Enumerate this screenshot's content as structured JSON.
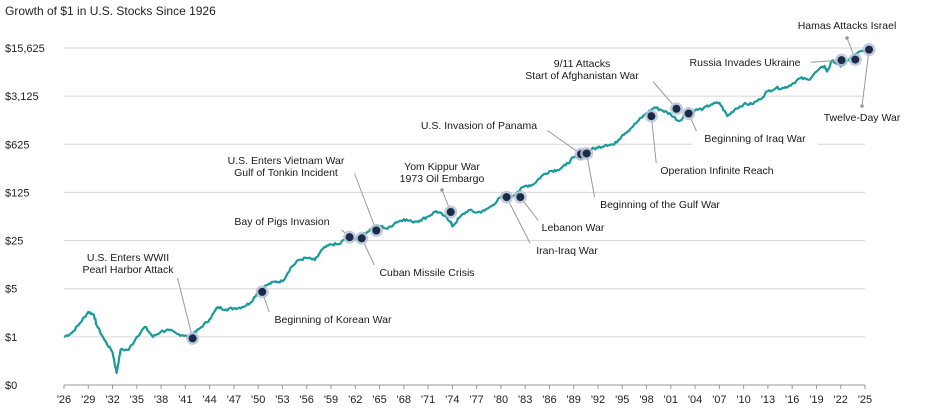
{
  "chart_data": {
    "type": "line",
    "title": "Growth of $1 in U.S. Stocks Since 1926",
    "xlabel": "",
    "ylabel": "",
    "y_scale": "log",
    "xlim": [
      1926,
      2025
    ],
    "ylim": [
      0.2,
      15625
    ],
    "x_ticks": [
      "'26",
      "'29",
      "'32",
      "'35",
      "'38",
      "'41",
      "'44",
      "'47",
      "'50",
      "'53",
      "'56",
      "'59",
      "'62",
      "'65",
      "'68",
      "'71",
      "'74",
      "'77",
      "'80",
      "'83",
      "'86",
      "'89",
      "'92",
      "'95",
      "'98",
      "'01",
      "'04",
      "'07",
      "'10",
      "'13",
      "'16",
      "'19",
      "'22",
      "'25"
    ],
    "x_tick_years": [
      1926,
      1929,
      1932,
      1935,
      1938,
      1941,
      1944,
      1947,
      1950,
      1953,
      1956,
      1959,
      1962,
      1965,
      1968,
      1971,
      1974,
      1977,
      1980,
      1983,
      1986,
      1989,
      1992,
      1995,
      1998,
      2001,
      2004,
      2007,
      2010,
      2013,
      2016,
      2019,
      2022,
      2025
    ],
    "y_ticks": [
      {
        "label": "$0",
        "value": 0.2
      },
      {
        "label": "$1",
        "value": 1
      },
      {
        "label": "$5",
        "value": 5
      },
      {
        "label": "$25",
        "value": 25
      },
      {
        "label": "$125",
        "value": 125
      },
      {
        "label": "$625",
        "value": 625
      },
      {
        "label": "$3,125",
        "value": 3125
      },
      {
        "label": "$15,625",
        "value": 15625
      }
    ],
    "grid": true,
    "series": [
      {
        "name": "Growth of $1",
        "color": "#1a9a9a",
        "x": [
          1926,
          1927,
          1928,
          1929,
          1929.7,
          1930,
          1931,
          1932,
          1932.5,
          1933,
          1934,
          1935,
          1936,
          1937,
          1938,
          1939,
          1940,
          1941,
          1941.9,
          1942,
          1943,
          1944,
          1945,
          1946,
          1947,
          1948,
          1949,
          1950,
          1951,
          1952,
          1953,
          1954,
          1955,
          1956,
          1957,
          1958,
          1959,
          1960,
          1961,
          1962,
          1962.8,
          1963,
          1964,
          1965,
          1966,
          1967,
          1968,
          1969,
          1970,
          1971,
          1972,
          1973,
          1973.8,
          1974,
          1975,
          1976,
          1977,
          1978,
          1979,
          1980,
          1981,
          1982,
          1983,
          1984,
          1985,
          1986,
          1987,
          1988,
          1989,
          1990,
          1991,
          1992,
          1993,
          1994,
          1995,
          1996,
          1997,
          1998,
          1999,
          2000,
          2001,
          2002,
          2003,
          2004,
          2005,
          2006,
          2007,
          2008,
          2009,
          2010,
          2011,
          2012,
          2013,
          2014,
          2015,
          2016,
          2017,
          2018,
          2019,
          2020,
          2020.3,
          2021,
          2022,
          2023,
          2024,
          2025
        ],
        "values": [
          1,
          1.15,
          1.6,
          2.3,
          2.1,
          1.5,
          0.9,
          0.6,
          0.3,
          0.65,
          0.65,
          1,
          1.4,
          1.0,
          1.2,
          1.25,
          1.1,
          1.05,
          0.95,
          1.1,
          1.4,
          1.8,
          2.7,
          2.5,
          2.6,
          2.7,
          3.1,
          4.5,
          5.6,
          6.3,
          6.4,
          10,
          13,
          14,
          13,
          19,
          22,
          22,
          28,
          26,
          26,
          31,
          37,
          41,
          37,
          46,
          51,
          47,
          49,
          56,
          67,
          57,
          47,
          40,
          56,
          69,
          64,
          68,
          82,
          107,
          102,
          126,
          155,
          163,
          215,
          255,
          265,
          310,
          405,
          390,
          520,
          560,
          615,
          620,
          850,
          1050,
          1380,
          1770,
          2150,
          1930,
          1700,
          1350,
          1760,
          1950,
          2050,
          2380,
          2500,
          1600,
          2050,
          2380,
          2400,
          2800,
          3700,
          4100,
          4100,
          4700,
          5700,
          5400,
          7100,
          8600,
          7100,
          10400,
          8400,
          10500,
          13000,
          14800
        ]
      }
    ],
    "events": [
      {
        "lines": [
          "U.S. Enters WWII",
          "Pearl Harbor Attack"
        ],
        "year": 1941.9,
        "value": 0.95
      },
      {
        "lines": [
          "Beginning of Korean War"
        ],
        "year": 1950.5,
        "value": 4.5
      },
      {
        "lines": [
          "Bay of Pigs Invasion"
        ],
        "year": 1961.3,
        "value": 28
      },
      {
        "lines": [
          "Cuban Missile Crisis"
        ],
        "year": 1962.8,
        "value": 27
      },
      {
        "lines": [
          "U.S. Enters Vietnam War",
          "Gulf of Tonkin Incident"
        ],
        "year": 1964.6,
        "value": 35
      },
      {
        "lines": [
          "Yom Kippur War",
          "1973 Oil Embargo"
        ],
        "year": 1973.8,
        "value": 65
      },
      {
        "lines": [
          "Iran-Iraq War"
        ],
        "year": 1980.7,
        "value": 107
      },
      {
        "lines": [
          "Lebanon War"
        ],
        "year": 1982.4,
        "value": 107
      },
      {
        "lines": [
          "U.S. Invasion of Panama"
        ],
        "year": 1989.9,
        "value": 450
      },
      {
        "lines": [
          "Beginning of the Gulf War"
        ],
        "year": 1990.6,
        "value": 460
      },
      {
        "lines": [
          "Operation Infinite Reach"
        ],
        "year": 1998.6,
        "value": 1600
      },
      {
        "lines": [
          "9/11 Attacks",
          "Start of Afghanistan War"
        ],
        "year": 2001.7,
        "value": 2050
      },
      {
        "lines": [
          "Beginning of Iraq War"
        ],
        "year": 2003.2,
        "value": 1750
      },
      {
        "lines": [
          "Russia Invades Ukraine"
        ],
        "year": 2022.1,
        "value": 10400
      },
      {
        "lines": [
          "Hamas Attacks Israel"
        ],
        "year": 2023.8,
        "value": 10600
      },
      {
        "lines": [
          "Twelve-Day War"
        ],
        "year": 2025.5,
        "value": 14800
      }
    ]
  }
}
